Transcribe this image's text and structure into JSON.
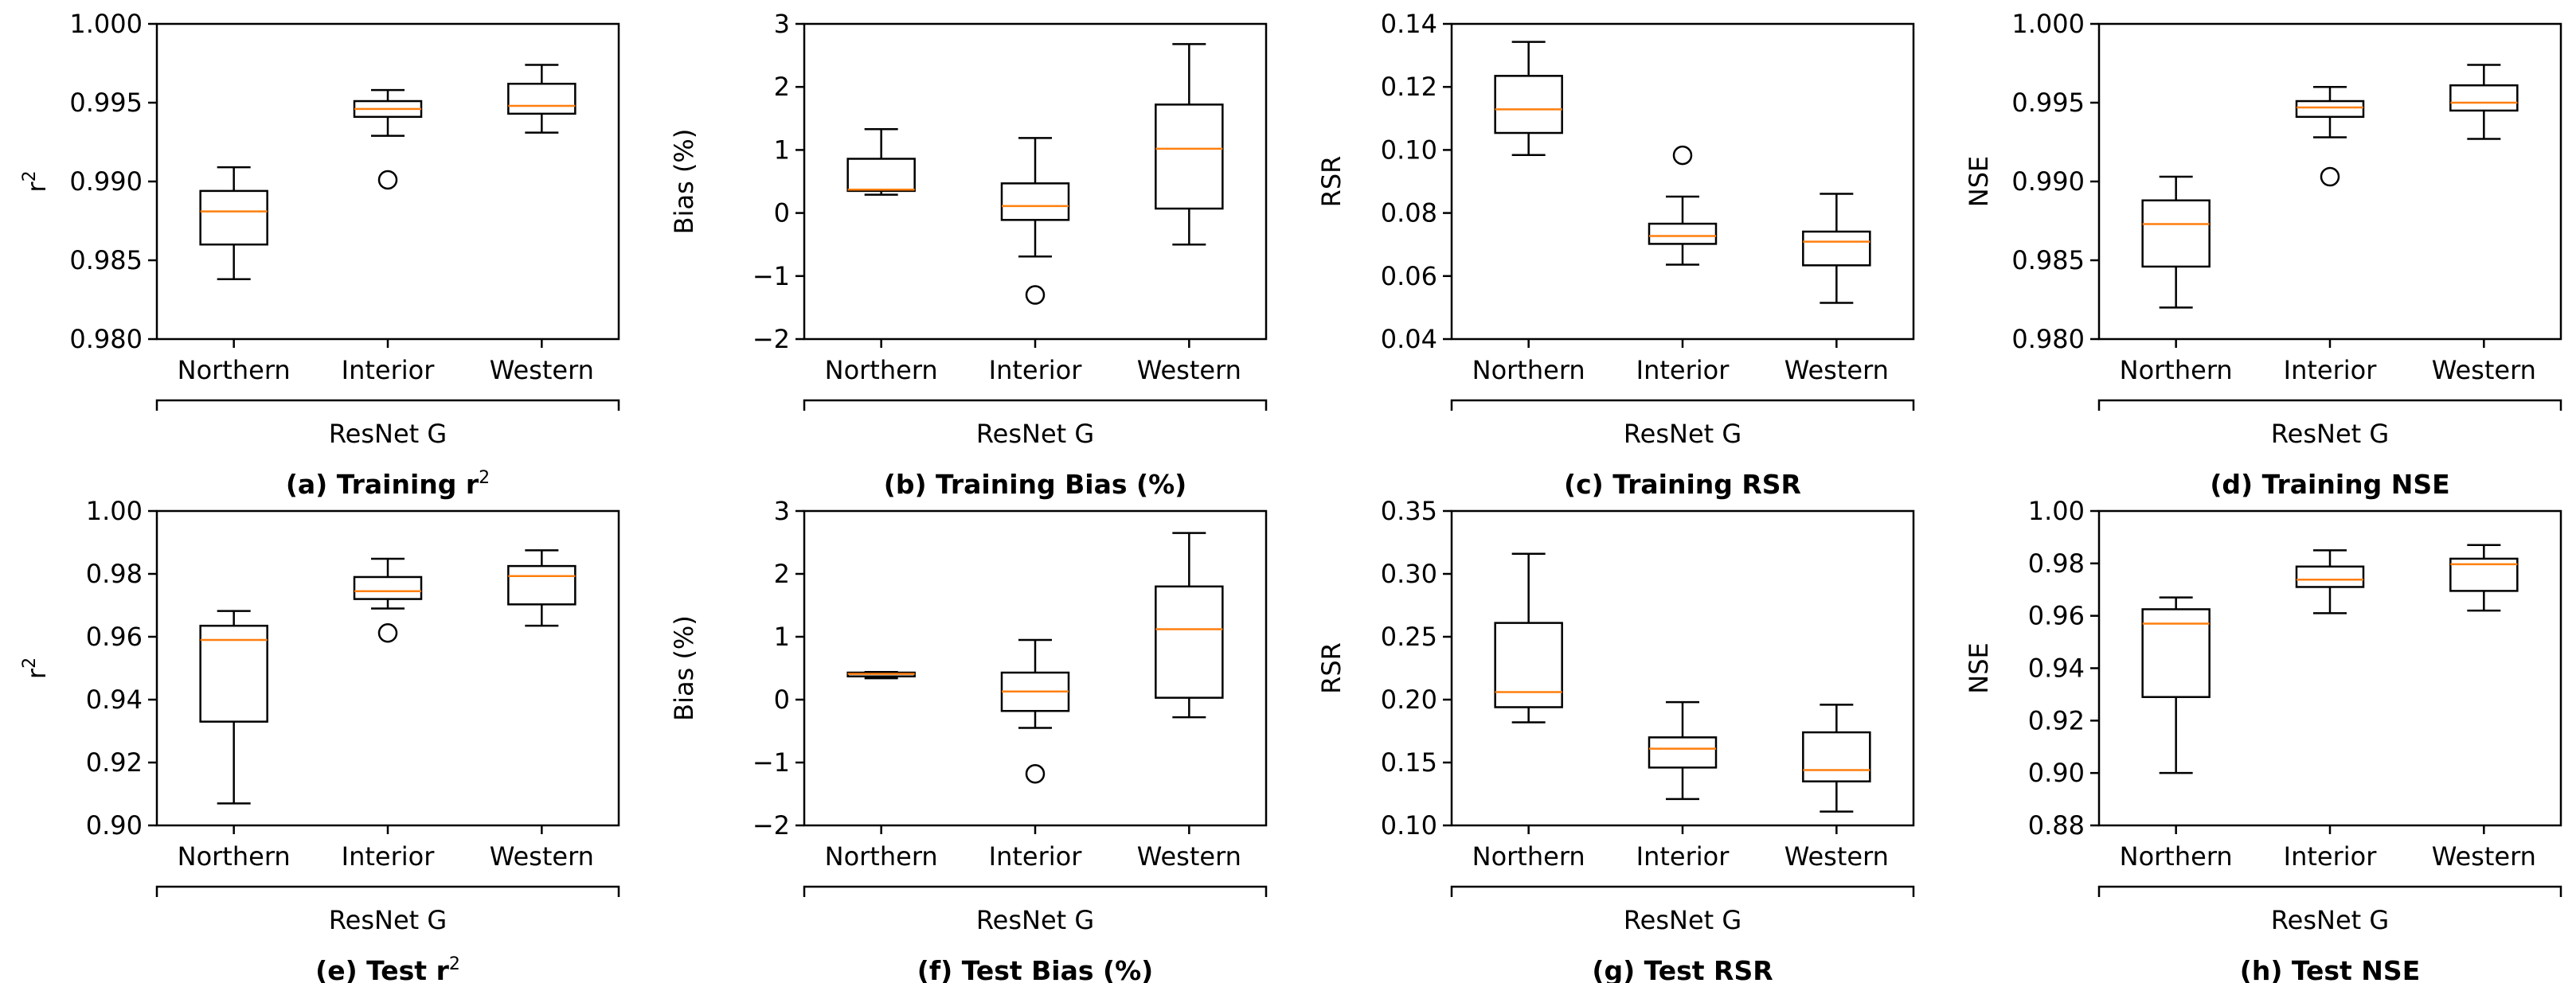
{
  "colors": {
    "box": "#000000",
    "median": "#ff7f0e",
    "flier": "#000000"
  },
  "group_label": "ResNet G",
  "chart_data": [
    {
      "type": "box",
      "caption": "(a) Training r",
      "caption_sup": "2",
      "ylabel": "r",
      "ylabel_sup": "2",
      "ylim": [
        0.98,
        1.0
      ],
      "yticks": [
        "0.980",
        "0.985",
        "0.990",
        "0.995",
        "1.000"
      ],
      "categories": [
        "Northern",
        "Interior",
        "Western"
      ],
      "boxes": [
        {
          "whislo": 0.9838,
          "q1": 0.986,
          "med": 0.9881,
          "q3": 0.9894,
          "whishi": 0.9909,
          "fliers": []
        },
        {
          "whislo": 0.9929,
          "q1": 0.9941,
          "med": 0.9946,
          "q3": 0.9951,
          "whishi": 0.9958,
          "fliers": [
            0.9901
          ]
        },
        {
          "whislo": 0.9931,
          "q1": 0.9943,
          "med": 0.9948,
          "q3": 0.9962,
          "whishi": 0.9974,
          "fliers": []
        }
      ]
    },
    {
      "type": "box",
      "caption": "(b) Training Bias (%)",
      "caption_sup": "",
      "ylabel": "Bias (%)",
      "ylabel_sup": "",
      "ylim": [
        -2,
        3
      ],
      "yticks": [
        "−2",
        "−1",
        "0",
        "1",
        "2",
        "3"
      ],
      "categories": [
        "Northern",
        "Interior",
        "Western"
      ],
      "boxes": [
        {
          "whislo": 0.29,
          "q1": 0.35,
          "med": 0.37,
          "q3": 0.86,
          "whishi": 1.33,
          "fliers": []
        },
        {
          "whislo": -0.69,
          "q1": -0.11,
          "med": 0.11,
          "q3": 0.47,
          "whishi": 1.19,
          "fliers": [
            -1.3
          ]
        },
        {
          "whislo": -0.5,
          "q1": 0.07,
          "med": 1.02,
          "q3": 1.72,
          "whishi": 2.68,
          "fliers": []
        }
      ]
    },
    {
      "type": "box",
      "caption": "(c) Training RSR",
      "caption_sup": "",
      "ylabel": "RSR",
      "ylabel_sup": "",
      "ylim": [
        0.04,
        0.14
      ],
      "yticks": [
        "0.04",
        "0.06",
        "0.08",
        "0.10",
        "0.12",
        "0.14"
      ],
      "categories": [
        "Northern",
        "Interior",
        "Western"
      ],
      "boxes": [
        {
          "whislo": 0.0984,
          "q1": 0.1054,
          "med": 0.1129,
          "q3": 0.1235,
          "whishi": 0.1343,
          "fliers": []
        },
        {
          "whislo": 0.0636,
          "q1": 0.0702,
          "med": 0.0727,
          "q3": 0.0766,
          "whishi": 0.0852,
          "fliers": [
            0.0983
          ]
        },
        {
          "whislo": 0.0515,
          "q1": 0.0634,
          "med": 0.0709,
          "q3": 0.0741,
          "whishi": 0.0861,
          "fliers": []
        }
      ]
    },
    {
      "type": "box",
      "caption": "(d) Training NSE",
      "caption_sup": "",
      "ylabel": "NSE",
      "ylabel_sup": "",
      "ylim": [
        0.98,
        1.0
      ],
      "yticks": [
        "0.980",
        "0.985",
        "0.990",
        "0.995",
        "1.000"
      ],
      "categories": [
        "Northern",
        "Interior",
        "Western"
      ],
      "boxes": [
        {
          "whislo": 0.982,
          "q1": 0.9846,
          "med": 0.9873,
          "q3": 0.9888,
          "whishi": 0.9903,
          "fliers": []
        },
        {
          "whislo": 0.9928,
          "q1": 0.9941,
          "med": 0.9947,
          "q3": 0.9951,
          "whishi": 0.996,
          "fliers": [
            0.9903
          ]
        },
        {
          "whislo": 0.9927,
          "q1": 0.9945,
          "med": 0.995,
          "q3": 0.9961,
          "whishi": 0.9974,
          "fliers": []
        }
      ]
    },
    {
      "type": "box",
      "caption": "(e) Test r",
      "caption_sup": "2",
      "ylabel": "r",
      "ylabel_sup": "2",
      "ylim": [
        0.9,
        1.0
      ],
      "yticks": [
        "0.90",
        "0.92",
        "0.94",
        "0.96",
        "0.98",
        "1.00"
      ],
      "categories": [
        "Northern",
        "Interior",
        "Western"
      ],
      "boxes": [
        {
          "whislo": 0.907,
          "q1": 0.933,
          "med": 0.959,
          "q3": 0.9635,
          "whishi": 0.9682,
          "fliers": []
        },
        {
          "whislo": 0.969,
          "q1": 0.972,
          "med": 0.9745,
          "q3": 0.979,
          "whishi": 0.9848,
          "fliers": [
            0.9612
          ]
        },
        {
          "whislo": 0.9635,
          "q1": 0.9703,
          "med": 0.9793,
          "q3": 0.9825,
          "whishi": 0.9875,
          "fliers": []
        }
      ]
    },
    {
      "type": "box",
      "caption": "(f) Test Bias (%)",
      "caption_sup": "",
      "ylabel": "Bias (%)",
      "ylabel_sup": "",
      "ylim": [
        -2,
        3
      ],
      "yticks": [
        "−2",
        "−1",
        "0",
        "1",
        "2",
        "3"
      ],
      "categories": [
        "Northern",
        "Interior",
        "Western"
      ],
      "boxes": [
        {
          "whislo": 0.34,
          "q1": 0.37,
          "med": 0.41,
          "q3": 0.43,
          "whishi": 0.44,
          "fliers": []
        },
        {
          "whislo": -0.45,
          "q1": -0.18,
          "med": 0.13,
          "q3": 0.43,
          "whishi": 0.95,
          "fliers": [
            -1.18
          ]
        },
        {
          "whislo": -0.28,
          "q1": 0.03,
          "med": 1.12,
          "q3": 1.8,
          "whishi": 2.65,
          "fliers": []
        }
      ]
    },
    {
      "type": "box",
      "caption": "(g) Test RSR",
      "caption_sup": "",
      "ylabel": "RSR",
      "ylabel_sup": "",
      "ylim": [
        0.1,
        0.35
      ],
      "yticks": [
        "0.10",
        "0.15",
        "0.20",
        "0.25",
        "0.30",
        "0.35"
      ],
      "categories": [
        "Northern",
        "Interior",
        "Western"
      ],
      "boxes": [
        {
          "whislo": 0.182,
          "q1": 0.194,
          "med": 0.206,
          "q3": 0.261,
          "whishi": 0.316,
          "fliers": []
        },
        {
          "whislo": 0.121,
          "q1": 0.146,
          "med": 0.161,
          "q3": 0.17,
          "whishi": 0.198,
          "fliers": []
        },
        {
          "whislo": 0.111,
          "q1": 0.135,
          "med": 0.144,
          "q3": 0.174,
          "whishi": 0.196,
          "fliers": []
        }
      ]
    },
    {
      "type": "box",
      "caption": "(h) Test NSE",
      "caption_sup": "",
      "ylabel": "NSE",
      "ylabel_sup": "",
      "ylim": [
        0.88,
        1.0
      ],
      "yticks": [
        "0.88",
        "0.90",
        "0.92",
        "0.94",
        "0.96",
        "0.98",
        "1.00"
      ],
      "categories": [
        "Northern",
        "Interior",
        "Western"
      ],
      "boxes": [
        {
          "whislo": 0.9,
          "q1": 0.929,
          "med": 0.957,
          "q3": 0.9625,
          "whishi": 0.967,
          "fliers": []
        },
        {
          "whislo": 0.961,
          "q1": 0.971,
          "med": 0.9738,
          "q3": 0.9788,
          "whishi": 0.985,
          "fliers": []
        },
        {
          "whislo": 0.962,
          "q1": 0.9695,
          "med": 0.9797,
          "q3": 0.9818,
          "whishi": 0.987,
          "fliers": []
        }
      ]
    }
  ]
}
